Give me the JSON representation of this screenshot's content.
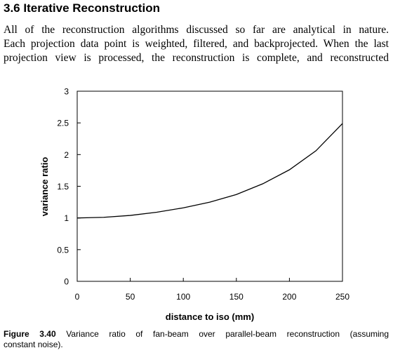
{
  "section": {
    "heading": "3.6 Iterative Reconstruction"
  },
  "paragraph": {
    "lines": [
      "All of the reconstruction algorithms discussed so far are analytical in nature.",
      "Each projection data point is weighted, filtered, and backprojected. When the last",
      "projection view is processed, the reconstruction is complete, and reconstructed"
    ]
  },
  "chart_data": {
    "type": "line",
    "title": "",
    "xlabel": "distance to iso (mm)",
    "ylabel": "variance ratio",
    "xlim": [
      0,
      250
    ],
    "ylim": [
      0,
      3
    ],
    "xticks": [
      0,
      50,
      100,
      150,
      200,
      250
    ],
    "yticks": [
      0,
      0.5,
      1,
      1.5,
      2,
      2.5,
      3
    ],
    "xtick_labels": [
      "0",
      "50",
      "100",
      "150",
      "200",
      "250"
    ],
    "ytick_labels": [
      "0",
      "0.5",
      "1",
      "1.5",
      "2",
      "2.5",
      "3"
    ],
    "grid": false,
    "legend": "none",
    "line_color": "#000000",
    "series": [
      {
        "x": [
          0,
          25,
          50,
          75,
          100,
          125,
          150,
          175,
          200,
          225,
          250
        ],
        "y": [
          1.0,
          1.01,
          1.04,
          1.09,
          1.16,
          1.25,
          1.37,
          1.54,
          1.76,
          2.06,
          2.49
        ]
      }
    ]
  },
  "caption": {
    "label": "Figure 3.40",
    "line1": "Variance ratio of fan-beam over parallel-beam reconstruction (assuming",
    "line2": "constant noise)."
  }
}
